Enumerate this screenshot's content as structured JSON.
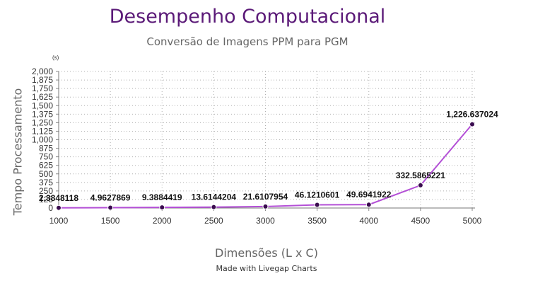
{
  "chart_data": {
    "type": "line",
    "title": "Desempenho Computacional",
    "subtitle": "Conversão de Imagens PPM para PGM",
    "xlabel": "Dimensões (L x C)",
    "ylabel": "Tempo Processamento",
    "yunit": "(s)",
    "credit": "Made with Livegap Charts",
    "x": [
      1000,
      1500,
      2000,
      2500,
      3000,
      3500,
      4000,
      4500,
      5000
    ],
    "values": [
      2.3848118,
      4.9627869,
      9.3884419,
      13.6144204,
      21.6107954,
      46.1210601,
      49.6941922,
      332.5865221,
      1226.637024
    ],
    "value_labels": [
      "2.3848118",
      "4.9627869",
      "9.3884419",
      "13.6144204",
      "21.6107954",
      "46.1210601",
      "49.6941922",
      "332.5865221",
      "1,226.637024"
    ],
    "ylim": [
      0,
      2000
    ],
    "yticks": [
      0,
      125,
      250,
      375,
      500,
      625,
      750,
      875,
      1000,
      1125,
      1250,
      1375,
      1500,
      1625,
      1750,
      1875,
      2000
    ],
    "ytick_labels": [
      "0",
      "125",
      "250",
      "375",
      "500",
      "625",
      "750",
      "875",
      "1,000",
      "1,125",
      "1,250",
      "1,375",
      "1,500",
      "1,625",
      "1,750",
      "1,875",
      "2,000"
    ],
    "xtick_labels": [
      "1000",
      "1500",
      "2000",
      "2500",
      "3000",
      "3500",
      "4000",
      "4500",
      "5000"
    ],
    "grid": true,
    "line_color": "#b34fd6",
    "marker_color": "#3a0b4f"
  }
}
